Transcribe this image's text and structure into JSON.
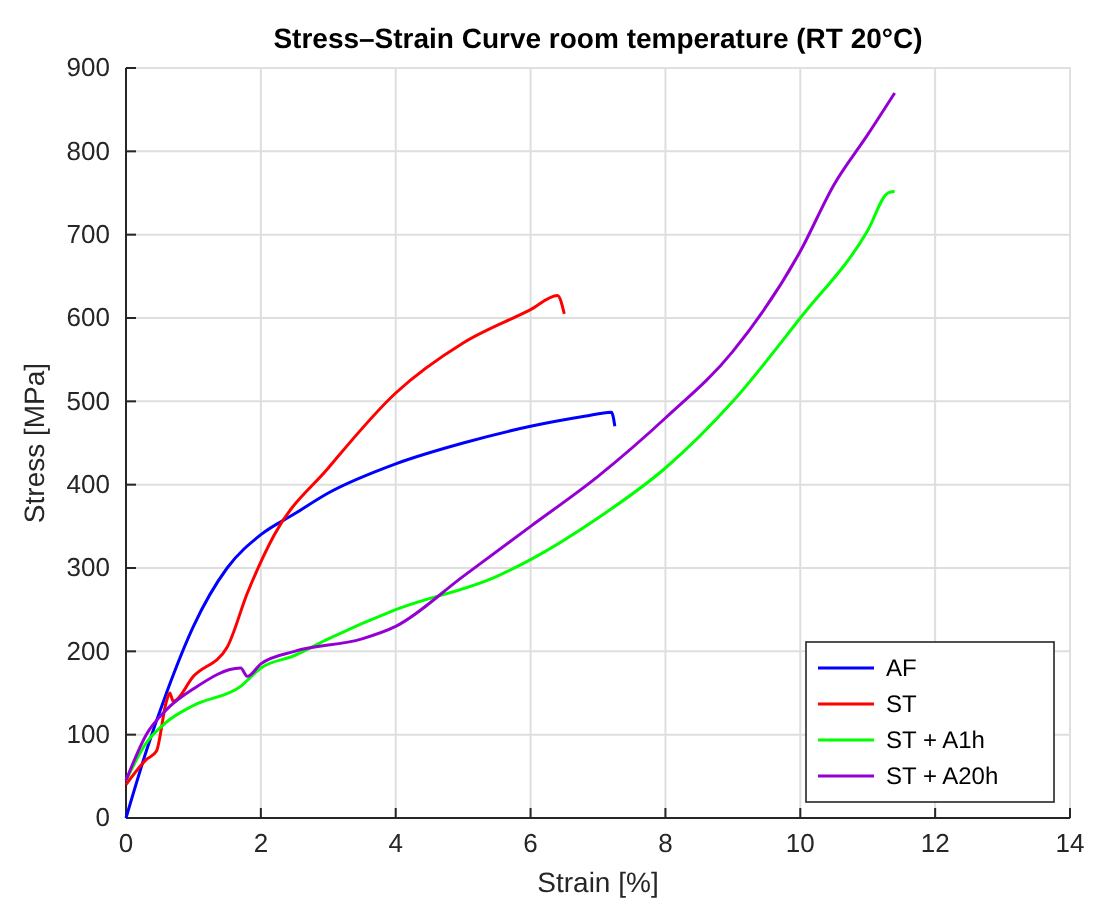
{
  "chart_data": {
    "type": "line",
    "title": "Stress–Strain Curve room temperature (RT 20°C)",
    "xlabel": "Strain [%]",
    "ylabel": "Stress [MPa]",
    "xlim": [
      0,
      14
    ],
    "xticks": [
      0,
      2,
      4,
      6,
      8,
      10,
      12,
      14
    ],
    "ylim": [
      0,
      900
    ],
    "yticks": [
      0,
      100,
      200,
      300,
      400,
      500,
      600,
      700,
      800,
      900
    ],
    "grid": true,
    "legend": "bottom right",
    "series": [
      {
        "name": "AF",
        "color": "#0000ff",
        "x": [
          0,
          0.3,
          0.6,
          1,
          1.5,
          2,
          2.5,
          3,
          4,
          5,
          6,
          6.8,
          7.2,
          7.25
        ],
        "values": [
          0,
          80,
          150,
          230,
          300,
          340,
          365,
          390,
          425,
          450,
          470,
          482,
          487,
          470
        ]
      },
      {
        "name": "ST",
        "color": "#ff0000",
        "x": [
          0,
          0.3,
          0.45,
          0.6,
          0.65,
          0.7,
          1,
          1.5,
          1.8,
          2.2,
          3,
          4,
          5,
          6,
          6.4,
          6.5
        ],
        "values": [
          40,
          70,
          80,
          140,
          150,
          140,
          170,
          205,
          270,
          340,
          420,
          510,
          570,
          610,
          627,
          605
        ]
      },
      {
        "name": "ST + A1h",
        "color": "#00ff00",
        "x": [
          0,
          0.3,
          0.6,
          1,
          1.7,
          2,
          2.5,
          3,
          4,
          5.5,
          6,
          7,
          8,
          9,
          10,
          11,
          11.3,
          11.4
        ],
        "values": [
          45,
          90,
          115,
          135,
          158,
          180,
          195,
          215,
          250,
          290,
          310,
          360,
          420,
          500,
          600,
          705,
          750,
          752
        ]
      },
      {
        "name": "ST + A20h",
        "color": "#9400d3",
        "x": [
          0,
          0.3,
          0.6,
          1,
          1.7,
          1.8,
          2,
          2.5,
          3.5,
          4,
          5,
          6,
          7,
          8,
          9,
          10,
          10.5,
          11,
          11.4
        ],
        "values": [
          45,
          100,
          130,
          155,
          180,
          170,
          185,
          200,
          215,
          230,
          290,
          350,
          410,
          480,
          560,
          680,
          760,
          820,
          870
        ]
      }
    ]
  }
}
